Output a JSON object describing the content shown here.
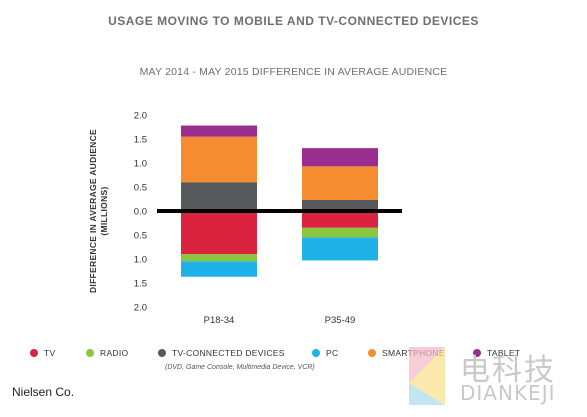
{
  "title": "USAGE MOVING TO MOBILE AND TV-CONNECTED DEVICES",
  "source": "Nielsen Co.",
  "legend_note": "(DVD, Game Console, Multimedia Device, VCR)",
  "watermark": {
    "cn": "电科技",
    "en": "DIANKEJI"
  },
  "chart_data": {
    "type": "bar",
    "stacked": true,
    "title": "MAY 2014 - MAY 2015 DIFFERENCE IN AVERAGE AUDIENCE",
    "ylabel_lines": [
      "DIFFERENCE IN AVERAGE AUDIENCE",
      "(MILLIONS)"
    ],
    "categories": [
      "P18-34",
      "P35-49"
    ],
    "ylim": [
      -2.0,
      2.0
    ],
    "yticks": [
      {
        "value": 2.0,
        "label": "2.0"
      },
      {
        "value": 1.5,
        "label": "1.5"
      },
      {
        "value": 1.0,
        "label": "1.0"
      },
      {
        "value": 0.5,
        "label": "0.5"
      },
      {
        "value": 0.0,
        "label": "0.0"
      },
      {
        "value": -0.5,
        "label": "0.5"
      },
      {
        "value": -1.0,
        "label": "1.0"
      },
      {
        "value": -1.5,
        "label": "1.5"
      },
      {
        "value": -2.0,
        "label": "2.0"
      }
    ],
    "grid": false,
    "legend_position": "bottom",
    "series": [
      {
        "name": "TV",
        "color": "#d9233f",
        "values": [
          -0.9,
          -0.35
        ]
      },
      {
        "name": "RADIO",
        "color": "#8cc63f",
        "values": [
          -0.15,
          -0.2
        ]
      },
      {
        "name": "TV-CONNECTED DEVICES",
        "color": "#58595b",
        "values": [
          0.6,
          0.23
        ]
      },
      {
        "name": "PC",
        "color": "#1fb2e8",
        "values": [
          -0.32,
          -0.48
        ]
      },
      {
        "name": "SMARTPHONE",
        "color": "#f58c32",
        "values": [
          0.95,
          0.7
        ]
      },
      {
        "name": "TABLET",
        "color": "#9b2d8e",
        "values": [
          0.23,
          0.38
        ]
      }
    ]
  }
}
